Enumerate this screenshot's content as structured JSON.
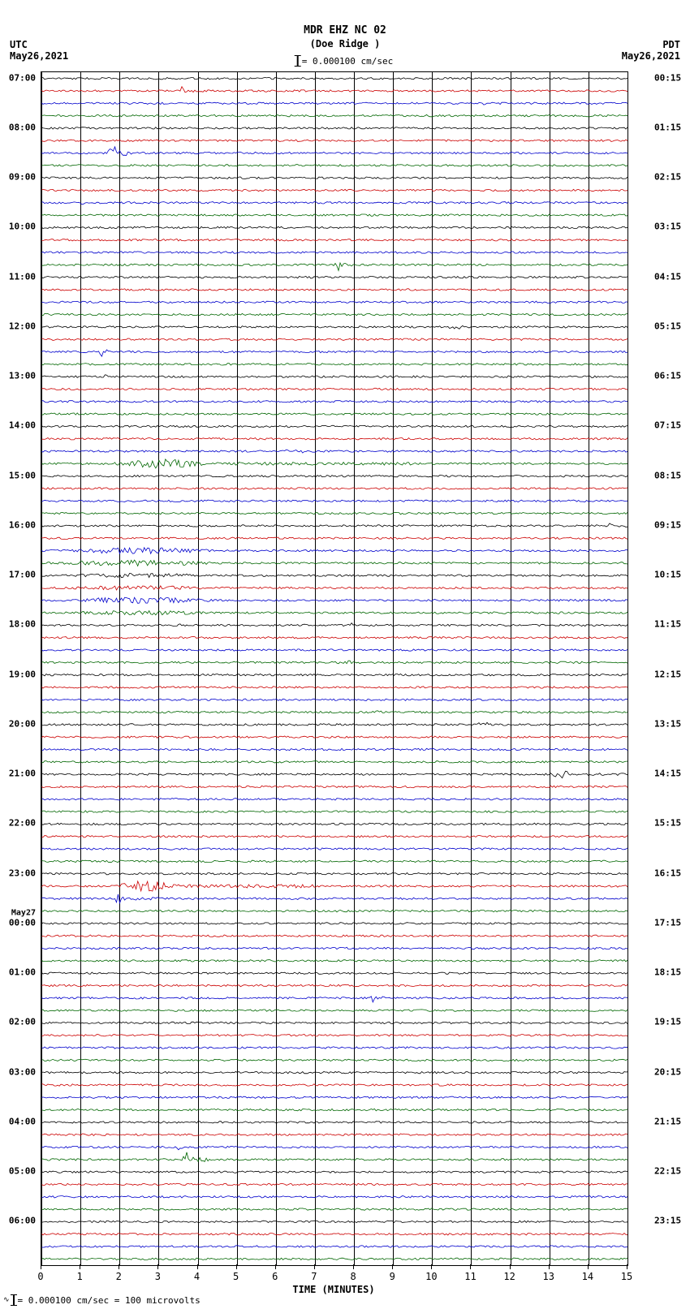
{
  "header": {
    "title": "MDR EHZ NC 02",
    "subtitle": "(Doe Ridge )",
    "scale_text": "= 0.000100 cm/sec"
  },
  "corners": {
    "tl_tz": "UTC",
    "tl_date": "May26,2021",
    "tr_tz": "PDT",
    "tr_date": "May26,2021"
  },
  "footer": {
    "text": "= 0.000100 cm/sec =    100 microvolts"
  },
  "x_axis": {
    "title": "TIME (MINUTES)",
    "ticks": [
      0,
      1,
      2,
      3,
      4,
      5,
      6,
      7,
      8,
      9,
      10,
      11,
      12,
      13,
      14,
      15
    ]
  },
  "plot": {
    "total_traces": 96,
    "colors": [
      "#000000",
      "#cc0000",
      "#0000cc",
      "#006600"
    ],
    "background": "#ffffff",
    "grid_minor": "#888888",
    "grid_major": "#000000",
    "left_hour_labels": [
      {
        "trace": 0,
        "text": "07:00"
      },
      {
        "trace": 4,
        "text": "08:00"
      },
      {
        "trace": 8,
        "text": "09:00"
      },
      {
        "trace": 12,
        "text": "10:00"
      },
      {
        "trace": 16,
        "text": "11:00"
      },
      {
        "trace": 20,
        "text": "12:00"
      },
      {
        "trace": 24,
        "text": "13:00"
      },
      {
        "trace": 28,
        "text": "14:00"
      },
      {
        "trace": 32,
        "text": "15:00"
      },
      {
        "trace": 36,
        "text": "16:00"
      },
      {
        "trace": 40,
        "text": "17:00"
      },
      {
        "trace": 44,
        "text": "18:00"
      },
      {
        "trace": 48,
        "text": "19:00"
      },
      {
        "trace": 52,
        "text": "20:00"
      },
      {
        "trace": 56,
        "text": "21:00"
      },
      {
        "trace": 60,
        "text": "22:00"
      },
      {
        "trace": 64,
        "text": "23:00"
      },
      {
        "trace": 68,
        "text": "00:00",
        "pre": "May27"
      },
      {
        "trace": 72,
        "text": "01:00"
      },
      {
        "trace": 76,
        "text": "02:00"
      },
      {
        "trace": 80,
        "text": "03:00"
      },
      {
        "trace": 84,
        "text": "04:00"
      },
      {
        "trace": 88,
        "text": "05:00"
      },
      {
        "trace": 92,
        "text": "06:00"
      }
    ],
    "right_hour_labels": [
      {
        "trace": 0,
        "text": "00:15"
      },
      {
        "trace": 4,
        "text": "01:15"
      },
      {
        "trace": 8,
        "text": "02:15"
      },
      {
        "trace": 12,
        "text": "03:15"
      },
      {
        "trace": 16,
        "text": "04:15"
      },
      {
        "trace": 20,
        "text": "05:15"
      },
      {
        "trace": 24,
        "text": "06:15"
      },
      {
        "trace": 28,
        "text": "07:15"
      },
      {
        "trace": 32,
        "text": "08:15"
      },
      {
        "trace": 36,
        "text": "09:15"
      },
      {
        "trace": 40,
        "text": "10:15"
      },
      {
        "trace": 44,
        "text": "11:15"
      },
      {
        "trace": 48,
        "text": "12:15"
      },
      {
        "trace": 52,
        "text": "13:15"
      },
      {
        "trace": 56,
        "text": "14:15"
      },
      {
        "trace": 60,
        "text": "15:15"
      },
      {
        "trace": 64,
        "text": "16:15"
      },
      {
        "trace": 68,
        "text": "17:15"
      },
      {
        "trace": 72,
        "text": "18:15"
      },
      {
        "trace": 76,
        "text": "19:15"
      },
      {
        "trace": 80,
        "text": "20:15"
      },
      {
        "trace": 84,
        "text": "21:15"
      },
      {
        "trace": 88,
        "text": "22:15"
      },
      {
        "trace": 92,
        "text": "23:15"
      }
    ],
    "events": [
      {
        "trace": 1,
        "start": 3.5,
        "end": 4.2,
        "amp": 6
      },
      {
        "trace": 2,
        "start": 11.2,
        "end": 11.8,
        "amp": 4
      },
      {
        "trace": 2,
        "start": 1.3,
        "end": 1.4,
        "amp": 8
      },
      {
        "trace": 6,
        "start": 1.7,
        "end": 2.5,
        "amp": 10
      },
      {
        "trace": 10,
        "start": 1.0,
        "end": 1.2,
        "amp": 6
      },
      {
        "trace": 15,
        "start": 7.5,
        "end": 8.0,
        "amp": 9
      },
      {
        "trace": 20,
        "start": 10.3,
        "end": 12.5,
        "amp": 3
      },
      {
        "trace": 22,
        "start": 1.5,
        "end": 1.7,
        "amp": 10
      },
      {
        "trace": 24,
        "start": 1.6,
        "end": 1.7,
        "amp": 12
      },
      {
        "trace": 30,
        "start": 6.0,
        "end": 9.0,
        "amp": 3
      },
      {
        "trace": 31,
        "start": 1.8,
        "end": 9.8,
        "amp": 6
      },
      {
        "trace": 31,
        "start": 9.3,
        "end": 9.5,
        "amp": 10
      },
      {
        "trace": 36,
        "start": 14.5,
        "end": 15.0,
        "amp": 5
      },
      {
        "trace": 38,
        "start": 0.0,
        "end": 15.0,
        "amp": 4
      },
      {
        "trace": 39,
        "start": 0.0,
        "end": 15.0,
        "amp": 4
      },
      {
        "trace": 40,
        "start": 0.0,
        "end": 15.0,
        "amp": 3
      },
      {
        "trace": 41,
        "start": 0.0,
        "end": 15.0,
        "amp": 3
      },
      {
        "trace": 42,
        "start": 0.0,
        "end": 15.0,
        "amp": 4
      },
      {
        "trace": 43,
        "start": 0.0,
        "end": 15.0,
        "amp": 3
      },
      {
        "trace": 44,
        "start": 3.5,
        "end": 3.7,
        "amp": 5
      },
      {
        "trace": 44,
        "start": 7.9,
        "end": 8.1,
        "amp": 5
      },
      {
        "trace": 47,
        "start": 7.5,
        "end": 9.0,
        "amp": 4
      },
      {
        "trace": 51,
        "start": 8.5,
        "end": 9.5,
        "amp": 3
      },
      {
        "trace": 52,
        "start": 11.0,
        "end": 13.0,
        "amp": 3
      },
      {
        "trace": 56,
        "start": 13.0,
        "end": 15.0,
        "amp": 5
      },
      {
        "trace": 65,
        "start": 1.8,
        "end": 7.0,
        "amp": 7
      },
      {
        "trace": 66,
        "start": 1.8,
        "end": 3.0,
        "amp": 6
      },
      {
        "trace": 74,
        "start": 8.4,
        "end": 8.8,
        "amp": 6
      },
      {
        "trace": 86,
        "start": 3.5,
        "end": 3.6,
        "amp": 20
      },
      {
        "trace": 87,
        "start": 3.6,
        "end": 4.3,
        "amp": 10
      }
    ],
    "baseline_noise": 1.2
  }
}
